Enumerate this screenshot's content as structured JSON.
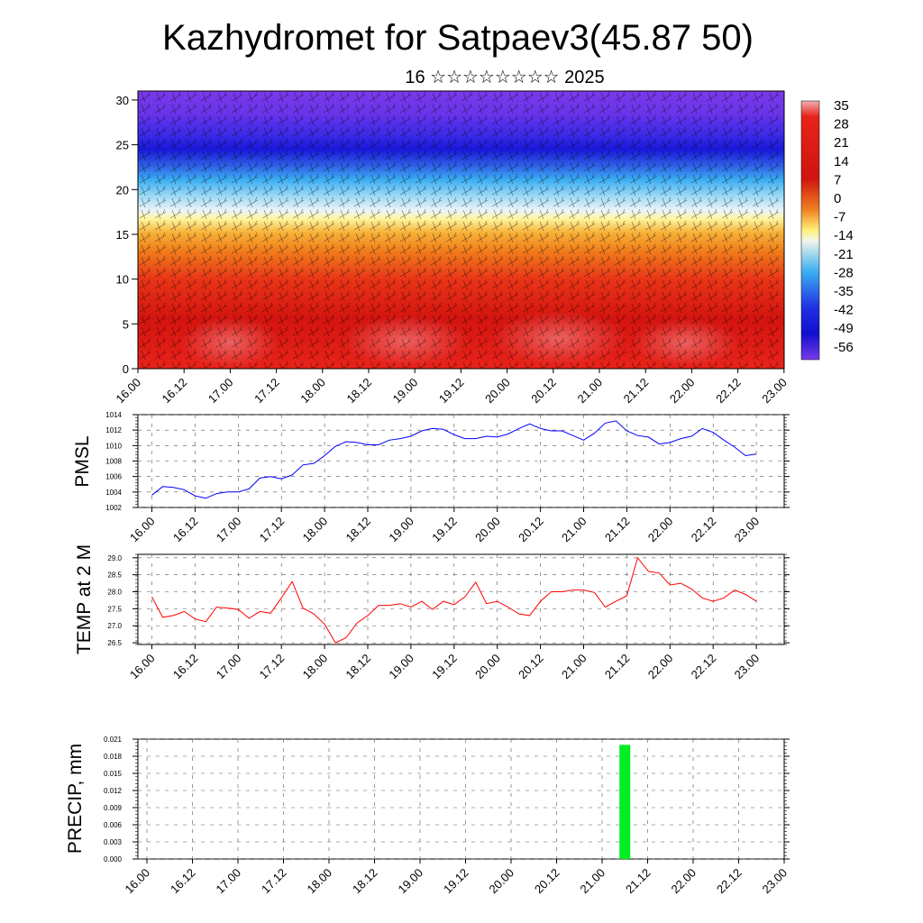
{
  "title": "Kazhydromet for Satpaev3(45.87 50)",
  "subtitle": "16 ☆☆☆☆☆☆☆☆ 2025",
  "time_labels": [
    "16.00",
    "16.12",
    "17.00",
    "17.12",
    "18.00",
    "18.12",
    "19.00",
    "19.12",
    "20.00",
    "20.12",
    "21.00",
    "21.12",
    "22.00",
    "22.12",
    "23.00"
  ],
  "chart_data": [
    {
      "type": "heatmap",
      "panel": "cross-section",
      "y_ticks": [
        0,
        5,
        10,
        15,
        20,
        25,
        30
      ],
      "ylim": [
        0,
        31
      ],
      "colorbar_labels": [
        "35",
        "28",
        "21",
        "14",
        "7",
        "0",
        "-7",
        "-14",
        "-21",
        "-28",
        "-35",
        "-42",
        "-49",
        "-56"
      ],
      "colors": {
        "warm": "#e8231a",
        "hot": "#c8120e",
        "orange": "#f07a1a",
        "yellow": "#fff6a0",
        "cyan": "#3aaef2",
        "blue": "#2020e0",
        "violet": "#7a3ae8"
      }
    },
    {
      "type": "line",
      "ylabel": "PMSL",
      "y_ticks": [
        "1002",
        "1004",
        "1006",
        "1008",
        "1010",
        "1012",
        "1014"
      ],
      "ylim": [
        1002,
        1014
      ],
      "series": [
        {
          "color": "#0000ff",
          "values": [
            1003.6,
            1004.7,
            1004.6,
            1004.3,
            1003.5,
            1003.2,
            1003.8,
            1004.0,
            1004.0,
            1004.4,
            1005.8,
            1006.0,
            1005.7,
            1006.2,
            1007.5,
            1007.7,
            1008.7,
            1009.9,
            1010.5,
            1010.4,
            1010.1,
            1010.1,
            1010.7,
            1010.9,
            1011.2,
            1011.9,
            1012.2,
            1012.1,
            1011.4,
            1010.9,
            1010.9,
            1011.2,
            1011.1,
            1011.5,
            1012.2,
            1012.8,
            1012.2,
            1011.9,
            1011.9,
            1011.3,
            1010.7,
            1011.6,
            1012.9,
            1013.2,
            1011.9,
            1011.3,
            1011.1,
            1010.2,
            1010.4,
            1010.9,
            1011.2,
            1012.2,
            1011.7,
            1010.7,
            1009.8,
            1008.7,
            1008.9
          ]
        }
      ]
    },
    {
      "type": "line",
      "ylabel": "TEMP at 2 M",
      "y_ticks": [
        "26.5",
        "27.0",
        "27.5",
        "28.0",
        "28.5",
        "29.0"
      ],
      "ylim": [
        26.45,
        29.1
      ],
      "series": [
        {
          "color": "#ff0000",
          "values": [
            27.85,
            27.25,
            27.3,
            27.42,
            27.2,
            27.12,
            27.55,
            27.52,
            27.48,
            27.22,
            27.42,
            27.37,
            27.82,
            28.3,
            27.52,
            27.35,
            27.05,
            26.5,
            26.65,
            27.08,
            27.3,
            27.6,
            27.6,
            27.65,
            27.55,
            27.72,
            27.48,
            27.72,
            27.62,
            27.85,
            28.28,
            27.65,
            27.72,
            27.55,
            27.35,
            27.3,
            27.72,
            28.0,
            28.0,
            28.05,
            28.05,
            27.98,
            27.55,
            27.72,
            27.88,
            29.0,
            28.6,
            28.55,
            28.2,
            28.25,
            28.08,
            27.82,
            27.72,
            27.82,
            28.05,
            27.92,
            27.72
          ]
        }
      ]
    },
    {
      "type": "bar",
      "ylabel": "PRECIP, mm",
      "y_ticks": [
        "0.000",
        "0.003",
        "0.006",
        "0.009",
        "0.012",
        "0.015",
        "0.018",
        "0.021"
      ],
      "ylim": [
        0,
        0.021
      ],
      "bars": [
        {
          "x": "21.06",
          "value": 0.02,
          "color": "#00ee22"
        }
      ]
    }
  ]
}
